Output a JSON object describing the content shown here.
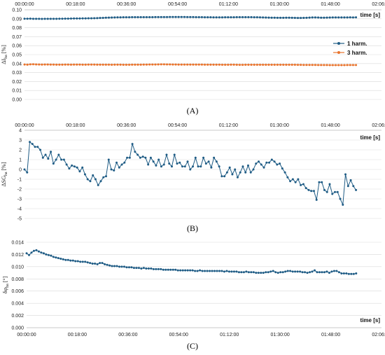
{
  "chart_data": [
    {
      "type": "line",
      "panel_label": "(A)",
      "xlabel": "time [s]",
      "ylabel": "ΔI",
      "ylabel_sub": "ha",
      "ylabel_unit": " [%]",
      "xticks": [
        "00:00:00",
        "00:18:00",
        "00:36:00",
        "00:54:00",
        "01:12:00",
        "01:30:00",
        "01:48:00",
        "02:06:00"
      ],
      "yticks": [
        "0.00",
        "0.01",
        "0.02",
        "0.03",
        "0.04",
        "0.05",
        "0.06",
        "0.07",
        "0.08",
        "0.09",
        "0.10"
      ],
      "ylim": [
        0,
        0.1
      ],
      "x_axis_position": "top",
      "grid": true,
      "legend": "right",
      "series": [
        {
          "name": "1 harm.",
          "color": "#1f5c85",
          "values": [
            0.09,
            0.09,
            0.0901,
            0.0899,
            0.0899,
            0.0899,
            0.0898,
            0.0899,
            0.0899,
            0.0899,
            0.0899,
            0.0899,
            0.09,
            0.09,
            0.0901,
            0.0901,
            0.0902,
            0.0903,
            0.0903,
            0.0903,
            0.0904,
            0.0904,
            0.0905,
            0.0905,
            0.0906,
            0.0907,
            0.0909,
            0.091,
            0.0912,
            0.0913,
            0.0914,
            0.0915,
            0.0916,
            0.0916,
            0.0917,
            0.0917,
            0.0917,
            0.0918,
            0.0918,
            0.0918,
            0.0918,
            0.0918,
            0.0918,
            0.0918,
            0.0918,
            0.0919,
            0.0919,
            0.0919,
            0.0919,
            0.0919,
            0.092,
            0.092,
            0.092,
            0.092,
            0.092,
            0.092,
            0.0919,
            0.0919,
            0.0919,
            0.0918,
            0.0918,
            0.0918,
            0.0917,
            0.0917,
            0.0917,
            0.0916,
            0.0916,
            0.0916,
            0.0916,
            0.0917,
            0.0917,
            0.0917,
            0.0917,
            0.0918,
            0.0918,
            0.0918,
            0.0918,
            0.0918,
            0.0918,
            0.0917,
            0.0917,
            0.0916,
            0.0915,
            0.0914,
            0.0913,
            0.0912,
            0.0912,
            0.0911,
            0.0911,
            0.0911,
            0.0912,
            0.0912,
            0.0911,
            0.091,
            0.0909,
            0.0909,
            0.091,
            0.0911,
            0.0913,
            0.0915,
            0.0915,
            0.0914,
            0.0912,
            0.0912,
            0.0913,
            0.0914,
            0.0915,
            0.0915,
            0.0915,
            0.0915,
            0.0915,
            0.0915,
            0.0916,
            0.0915,
            0.0916
          ]
        },
        {
          "name": "3 harm.",
          "color": "#e8732c",
          "values": [
            0.039,
            0.0388,
            0.0392,
            0.0393,
            0.0391,
            0.039,
            0.0389,
            0.039,
            0.039,
            0.0389,
            0.0389,
            0.0388,
            0.0388,
            0.0388,
            0.0389,
            0.0389,
            0.0388,
            0.0389,
            0.0389,
            0.0389,
            0.0388,
            0.0388,
            0.0389,
            0.0389,
            0.0389,
            0.0388,
            0.0388,
            0.0388,
            0.0388,
            0.0388,
            0.0387,
            0.0388,
            0.0388,
            0.0388,
            0.0387,
            0.0387,
            0.0387,
            0.0388,
            0.0388,
            0.0388,
            0.0388,
            0.0389,
            0.0389,
            0.039,
            0.039,
            0.039,
            0.0391,
            0.0392,
            0.0392,
            0.0391,
            0.0391,
            0.039,
            0.039,
            0.0389,
            0.0389,
            0.0389,
            0.0389,
            0.0389,
            0.0389,
            0.0389,
            0.0389,
            0.0389,
            0.0388,
            0.0388,
            0.0388,
            0.0388,
            0.0388,
            0.0388,
            0.0387,
            0.0387,
            0.0387,
            0.0388,
            0.0388,
            0.0387,
            0.0386,
            0.0386,
            0.0387,
            0.0387,
            0.0387,
            0.0387,
            0.0387,
            0.0387,
            0.0387,
            0.0387,
            0.0387,
            0.0387,
            0.0387,
            0.0387,
            0.0387,
            0.0387,
            0.0387,
            0.0387,
            0.0387,
            0.0387,
            0.0386,
            0.0386,
            0.0385,
            0.0385,
            0.0385,
            0.0385,
            0.0385,
            0.0384,
            0.0384,
            0.0384,
            0.0384,
            0.0383,
            0.0383,
            0.0383,
            0.0383,
            0.0383,
            0.0383,
            0.0384,
            0.0384,
            0.0384,
            0.0384
          ]
        }
      ]
    },
    {
      "type": "line",
      "panel_label": "(B)",
      "xlabel": "time [s]",
      "ylabel": "ΔSG",
      "ylabel_sub": "ha",
      "ylabel_unit": " [%]",
      "xticks": [
        "00:00:00",
        "00:18:00",
        "00:36:00",
        "00:54:00",
        "01:12:00",
        "01:30:00",
        "01:48:00",
        "02:06:00"
      ],
      "yticks": [
        "-5",
        "-4",
        "-3",
        "-2",
        "-1",
        "0",
        "1",
        "2",
        "3",
        "4"
      ],
      "ylim": [
        -5,
        4
      ],
      "x_axis_position": "top",
      "grid": true,
      "series": [
        {
          "name": "",
          "color": "#1f5c85",
          "values": [
            0.0,
            -0.3,
            2.8,
            2.6,
            2.3,
            2.3,
            2.0,
            1.2,
            1.5,
            1.1,
            1.8,
            0.6,
            1.0,
            1.5,
            1.0,
            1.0,
            0.5,
            0.1,
            0.4,
            0.3,
            0.2,
            -0.2,
            0.2,
            -0.5,
            -1.0,
            -1.2,
            -0.6,
            -1.0,
            -1.6,
            -1.2,
            -0.8,
            -0.7,
            1.0,
            0.0,
            -0.1,
            0.7,
            0.2,
            0.5,
            0.7,
            1.2,
            1.2,
            2.6,
            1.8,
            1.5,
            1.2,
            1.3,
            1.2,
            0.5,
            1.2,
            0.8,
            0.4,
            1.0,
            0.3,
            0.5,
            1.5,
            0.6,
            0.3,
            1.5,
            0.6,
            0.7,
            0.3,
            0.3,
            0.8,
            0.0,
            0.3,
            1.2,
            0.3,
            0.3,
            1.2,
            0.6,
            0.8,
            0.2,
            1.2,
            0.8,
            0.3,
            -0.7,
            -0.7,
            -0.3,
            0.2,
            -0.5,
            0.0,
            -0.8,
            -0.3,
            0.3,
            -0.3,
            0.4,
            -0.3,
            0.0,
            0.6,
            0.8,
            0.5,
            0.2,
            0.7,
            0.7,
            1.0,
            0.8,
            0.5,
            0.6,
            0.1,
            -0.3,
            -0.8,
            -1.2,
            -1.0,
            -1.3,
            -1.0,
            -1.6,
            -1.5,
            -1.9,
            -2.1,
            -2.2,
            -2.2,
            -3.1,
            -1.3,
            -1.3,
            -2.1,
            -2.3,
            -1.5,
            -2.5,
            -2.3,
            -2.3,
            -3.0,
            -3.6,
            -0.5,
            -1.7,
            -1.1,
            -1.7,
            -2.1
          ]
        }
      ]
    },
    {
      "type": "line",
      "panel_label": "(C)",
      "xlabel": "time [s]",
      "ylabel": "δφ",
      "ylabel_sub": "ha",
      "ylabel_unit": " [°]",
      "xticks": [
        "00:00:00",
        "00:18:00",
        "00:36:00",
        "00:54:00",
        "01:12:00",
        "01:30:00",
        "01:48:00",
        "02:06:00"
      ],
      "yticks": [
        "0.000",
        "0.002",
        "0.004",
        "0.006",
        "0.008",
        "0.010",
        "0.012",
        "0.014"
      ],
      "ylim": [
        0,
        0.014
      ],
      "x_axis_position": "bottom",
      "grid": true,
      "series": [
        {
          "name": "",
          "color": "#1f5c85",
          "values": [
            0.0122,
            0.0119,
            0.0123,
            0.0126,
            0.0127,
            0.0125,
            0.0123,
            0.0122,
            0.012,
            0.0119,
            0.0118,
            0.0116,
            0.0115,
            0.0114,
            0.0113,
            0.0112,
            0.0111,
            0.0111,
            0.011,
            0.011,
            0.0109,
            0.0109,
            0.0108,
            0.0108,
            0.0108,
            0.0107,
            0.0106,
            0.0105,
            0.0105,
            0.0104,
            0.0106,
            0.0106,
            0.0104,
            0.0103,
            0.0102,
            0.0101,
            0.0101,
            0.0101,
            0.01,
            0.01,
            0.01,
            0.0099,
            0.0099,
            0.0099,
            0.0098,
            0.0098,
            0.0098,
            0.0097,
            0.0098,
            0.0097,
            0.0097,
            0.0097,
            0.0096,
            0.0096,
            0.0096,
            0.0096,
            0.0095,
            0.0095,
            0.0095,
            0.0095,
            0.0095,
            0.0095,
            0.0094,
            0.0094,
            0.0094,
            0.0094,
            0.0094,
            0.0094,
            0.0094,
            0.0093,
            0.0093,
            0.0094,
            0.0093,
            0.0093,
            0.0093,
            0.0093,
            0.0093,
            0.0093,
            0.0093,
            0.0093,
            0.0093,
            0.0092,
            0.0093,
            0.0092,
            0.0092,
            0.0092,
            0.0092,
            0.0091,
            0.0091,
            0.0091,
            0.0092,
            0.0091,
            0.0091,
            0.0091,
            0.009,
            0.009,
            0.009,
            0.009,
            0.0091,
            0.0091,
            0.0092,
            0.0093,
            0.0091,
            0.009,
            0.0091,
            0.0091,
            0.0092,
            0.0093,
            0.0093,
            0.0092,
            0.0092,
            0.0092,
            0.0092,
            0.0091,
            0.0091,
            0.009,
            0.0091,
            0.0092,
            0.0094,
            0.0091,
            0.0091,
            0.0091,
            0.0091,
            0.0092,
            0.009,
            0.0092,
            0.0093,
            0.0093,
            0.0091,
            0.0089,
            0.0089,
            0.0089,
            0.0088,
            0.0088,
            0.0088,
            0.0089
          ]
        }
      ]
    }
  ]
}
